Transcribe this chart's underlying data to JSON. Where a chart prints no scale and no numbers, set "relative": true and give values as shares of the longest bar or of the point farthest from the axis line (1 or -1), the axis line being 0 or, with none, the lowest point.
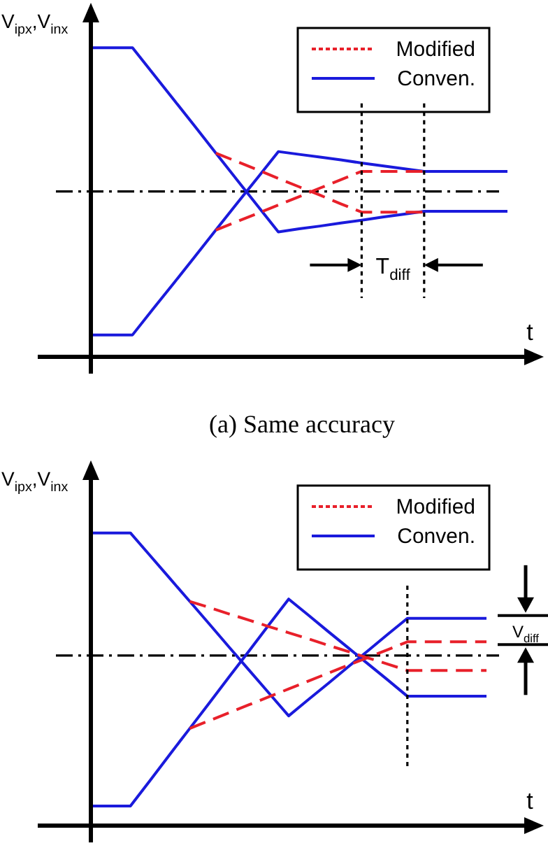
{
  "chart_data": [
    {
      "type": "line",
      "relative": true,
      "ylabel": "V$_{ipx}$,V$_{inx}$",
      "xlabel": "t",
      "tick_labels": false,
      "grid": false,
      "marker": "none",
      "legend": "top right",
      "categories": [
        null,
        null,
        null,
        null,
        null,
        null,
        null,
        null,
        null,
        null,
        null,
        null,
        null,
        null,
        null,
        null,
        null,
        null,
        null,
        null,
        null
      ],
      "series": [
        {
          "name": "Modified",
          "color": "#e8202a",
          "line_style": "dashed",
          "values": [
            null,
            null,
            null,
            null,
            null,
            null,
            0.659,
            0.632,
            0.605,
            0.577,
            0.55,
            0.523,
            0.495,
            0.468,
            0.468,
            0.468,
            0.468,
            null,
            null,
            null,
            null
          ]
        },
        {
          "color": "#e8202a",
          "line_style": "dashed",
          "values": [
            null,
            null,
            null,
            null,
            null,
            null,
            0.41,
            0.437,
            0.464,
            0.491,
            0.518,
            0.546,
            0.573,
            0.6,
            0.6,
            0.6,
            0.6,
            null,
            null,
            null,
            null
          ]
        },
        {
          "name": "Conven.",
          "color": "#1a1adc",
          "line_style": "solid",
          "values": [
            1,
            1,
            1,
            0.915,
            0.83,
            0.745,
            0.659,
            0.574,
            0.489,
            0.404,
            0.414,
            0.423,
            0.433,
            0.442,
            0.452,
            0.461,
            0.471,
            0.471,
            0.471,
            0.471,
            0.471
          ]
        },
        {
          "color": "#1a1adc",
          "line_style": "solid",
          "values": [
            0.071,
            0.071,
            0.071,
            0.156,
            0.24,
            0.325,
            0.41,
            0.495,
            0.579,
            0.664,
            0.655,
            0.646,
            0.637,
            0.627,
            0.618,
            0.609,
            0.6,
            0.6,
            0.6,
            0.6,
            0.6
          ]
        }
      ],
      "ref_lines": [
        {
          "axis": "y",
          "value": 0.535,
          "color": "#000000",
          "line_style": "dashed"
        }
      ],
      "annotations": [
        "T$_{diff}$",
        "(a) Same accuracy"
      ]
    },
    {
      "type": "line",
      "relative": true,
      "ylabel": "V$_{ipx}$,V$_{inx}$",
      "xlabel": "t",
      "tick_labels": false,
      "grid": false,
      "marker": "none",
      "legend": "top right",
      "categories": [
        null,
        null,
        null,
        null,
        null,
        null,
        null,
        null,
        null,
        null,
        null,
        null,
        null,
        null,
        null,
        null,
        null,
        null,
        null,
        null,
        null
      ],
      "series": [
        {
          "name": "Modified",
          "color": "#e8202a",
          "line_style": "dashed",
          "values": [
            null,
            null,
            null,
            null,
            null,
            0.766,
            0.745,
            0.723,
            0.702,
            0.68,
            0.659,
            0.638,
            0.616,
            0.595,
            0.573,
            0.552,
            0.53,
            0.53,
            0.53,
            0.53,
            0.53
          ]
        },
        {
          "color": "#e8202a",
          "line_style": "dashed",
          "values": [
            null,
            null,
            null,
            null,
            null,
            0.332,
            0.359,
            0.386,
            0.413,
            0.44,
            0.467,
            0.494,
            0.521,
            0.548,
            0.574,
            0.601,
            0.628,
            0.628,
            0.628,
            0.628,
            0.628
          ]
        },
        {
          "name": "Conven.",
          "color": "#1a1adc",
          "line_style": "solid",
          "values": [
            1,
            1,
            1,
            0.922,
            0.844,
            0.766,
            0.688,
            0.609,
            0.531,
            0.453,
            0.375,
            0.431,
            0.486,
            0.542,
            0.597,
            0.653,
            0.708,
            0.708,
            0.708,
            0.708,
            0.708
          ]
        },
        {
          "color": "#1a1adc",
          "line_style": "solid",
          "values": [
            0.067,
            0.067,
            0.067,
            0.155,
            0.244,
            0.332,
            0.42,
            0.509,
            0.597,
            0.686,
            0.774,
            0.719,
            0.663,
            0.608,
            0.553,
            0.498,
            0.442,
            0.442,
            0.442,
            0.442,
            0.442
          ]
        }
      ],
      "ref_lines": [
        {
          "axis": "y",
          "value": 0.581,
          "color": "#000000",
          "line_style": "dashed"
        }
      ],
      "annotations": [
        "V$_{diff}$"
      ]
    }
  ]
}
